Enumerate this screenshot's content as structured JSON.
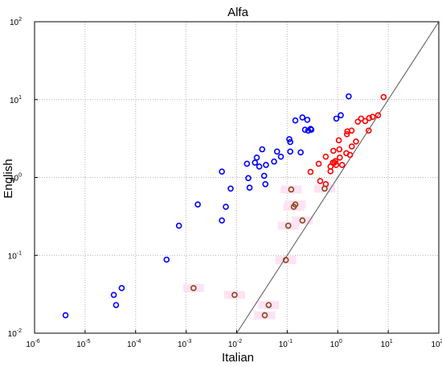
{
  "chart_data": {
    "type": "scatter",
    "title": "Alfa",
    "xlabel": "Italian",
    "ylabel": "English",
    "xscale": "log",
    "yscale": "log",
    "xlim": [
      1e-06,
      100
    ],
    "ylim": [
      0.01,
      100
    ],
    "grid": true,
    "reference_line": "y = x",
    "x_ticks": [
      {
        "base": "10",
        "exp": "-6"
      },
      {
        "base": "10",
        "exp": "-5"
      },
      {
        "base": "10",
        "exp": "-4"
      },
      {
        "base": "10",
        "exp": "-3"
      },
      {
        "base": "10",
        "exp": "-2"
      },
      {
        "base": "10",
        "exp": "-1"
      },
      {
        "base": "10",
        "exp": "0"
      },
      {
        "base": "10",
        "exp": "1"
      },
      {
        "base": "10",
        "exp": "2"
      }
    ],
    "y_ticks": [
      {
        "base": "10",
        "exp": "-2"
      },
      {
        "base": "10",
        "exp": "-1"
      },
      {
        "base": "10",
        "exp": "0"
      },
      {
        "base": "10",
        "exp": "1"
      },
      {
        "base": "10",
        "exp": "2"
      }
    ],
    "series": [
      {
        "color": "#0000ff",
        "points": [
          [
            4.1e-06,
            0.017
          ],
          [
            3.7e-05,
            0.031
          ],
          [
            4.1e-05,
            0.023
          ],
          [
            5.3e-05,
            0.038
          ],
          [
            0.00041,
            0.088
          ],
          [
            0.00072,
            0.24
          ],
          [
            0.0017,
            0.45
          ],
          [
            0.0051,
            0.28
          ],
          [
            0.0051,
            1.19
          ],
          [
            0.0061,
            0.42
          ],
          [
            0.0076,
            0.72
          ],
          [
            0.016,
            1.5
          ],
          [
            0.017,
            0.98
          ],
          [
            0.018,
            0.74
          ],
          [
            0.023,
            1.55
          ],
          [
            0.025,
            1.8
          ],
          [
            0.028,
            1.38
          ],
          [
            0.032,
            2.3
          ],
          [
            0.035,
            1.05
          ],
          [
            0.037,
            0.82
          ],
          [
            0.038,
            1.45
          ],
          [
            0.055,
            1.6
          ],
          [
            0.063,
            2.15
          ],
          [
            0.075,
            1.85
          ],
          [
            0.11,
            3.1
          ],
          [
            0.115,
            2.85
          ],
          [
            0.115,
            2.15
          ],
          [
            0.145,
            5.4
          ],
          [
            0.185,
            2.1
          ],
          [
            0.2,
            5.9
          ],
          [
            0.225,
            4.1
          ],
          [
            0.25,
            5.5
          ],
          [
            0.26,
            4.0
          ],
          [
            0.29,
            4.2
          ],
          [
            0.3,
            4.1
          ],
          [
            0.94,
            5.7
          ],
          [
            1.15,
            6.3
          ],
          [
            1.65,
            11.0
          ]
        ]
      },
      {
        "color": "#ff0000",
        "points": [
          [
            0.29,
            1.18
          ],
          [
            0.42,
            1.5
          ],
          [
            0.45,
            0.9
          ],
          [
            0.58,
            0.82
          ],
          [
            0.58,
            1.85
          ],
          [
            0.72,
            1.2
          ],
          [
            0.72,
            1.38
          ],
          [
            0.8,
            1.55
          ],
          [
            0.82,
            2.2
          ],
          [
            0.86,
            1.55
          ],
          [
            0.9,
            1.62
          ],
          [
            0.93,
            1.45
          ],
          [
            1.05,
            3.0
          ],
          [
            1.08,
            2.3
          ],
          [
            1.1,
            1.8
          ],
          [
            1.22,
            1.45
          ],
          [
            1.48,
            2.05
          ],
          [
            1.52,
            3.6
          ],
          [
            1.55,
            3.9
          ],
          [
            1.75,
            1.95
          ],
          [
            1.88,
            4.0
          ],
          [
            1.9,
            2.5
          ],
          [
            2.3,
            2.9
          ],
          [
            2.5,
            5.2
          ],
          [
            2.9,
            5.7
          ],
          [
            3.5,
            5.3
          ],
          [
            4.1,
            4.0
          ],
          [
            4.2,
            5.8
          ],
          [
            4.9,
            6.0
          ],
          [
            6.3,
            6.3
          ],
          [
            8.1,
            10.8
          ]
        ]
      },
      {
        "color": "#8b4513",
        "points": [
          [
            0.0014,
            0.038
          ],
          [
            0.0091,
            0.031
          ],
          [
            0.036,
            0.017
          ],
          [
            0.043,
            0.023
          ],
          [
            0.094,
            0.087
          ],
          [
            0.105,
            0.24
          ],
          [
            0.12,
            0.7
          ],
          [
            0.135,
            0.42
          ],
          [
            0.145,
            0.45
          ],
          [
            0.2,
            0.28
          ],
          [
            0.55,
            0.72
          ]
        ]
      }
    ]
  }
}
